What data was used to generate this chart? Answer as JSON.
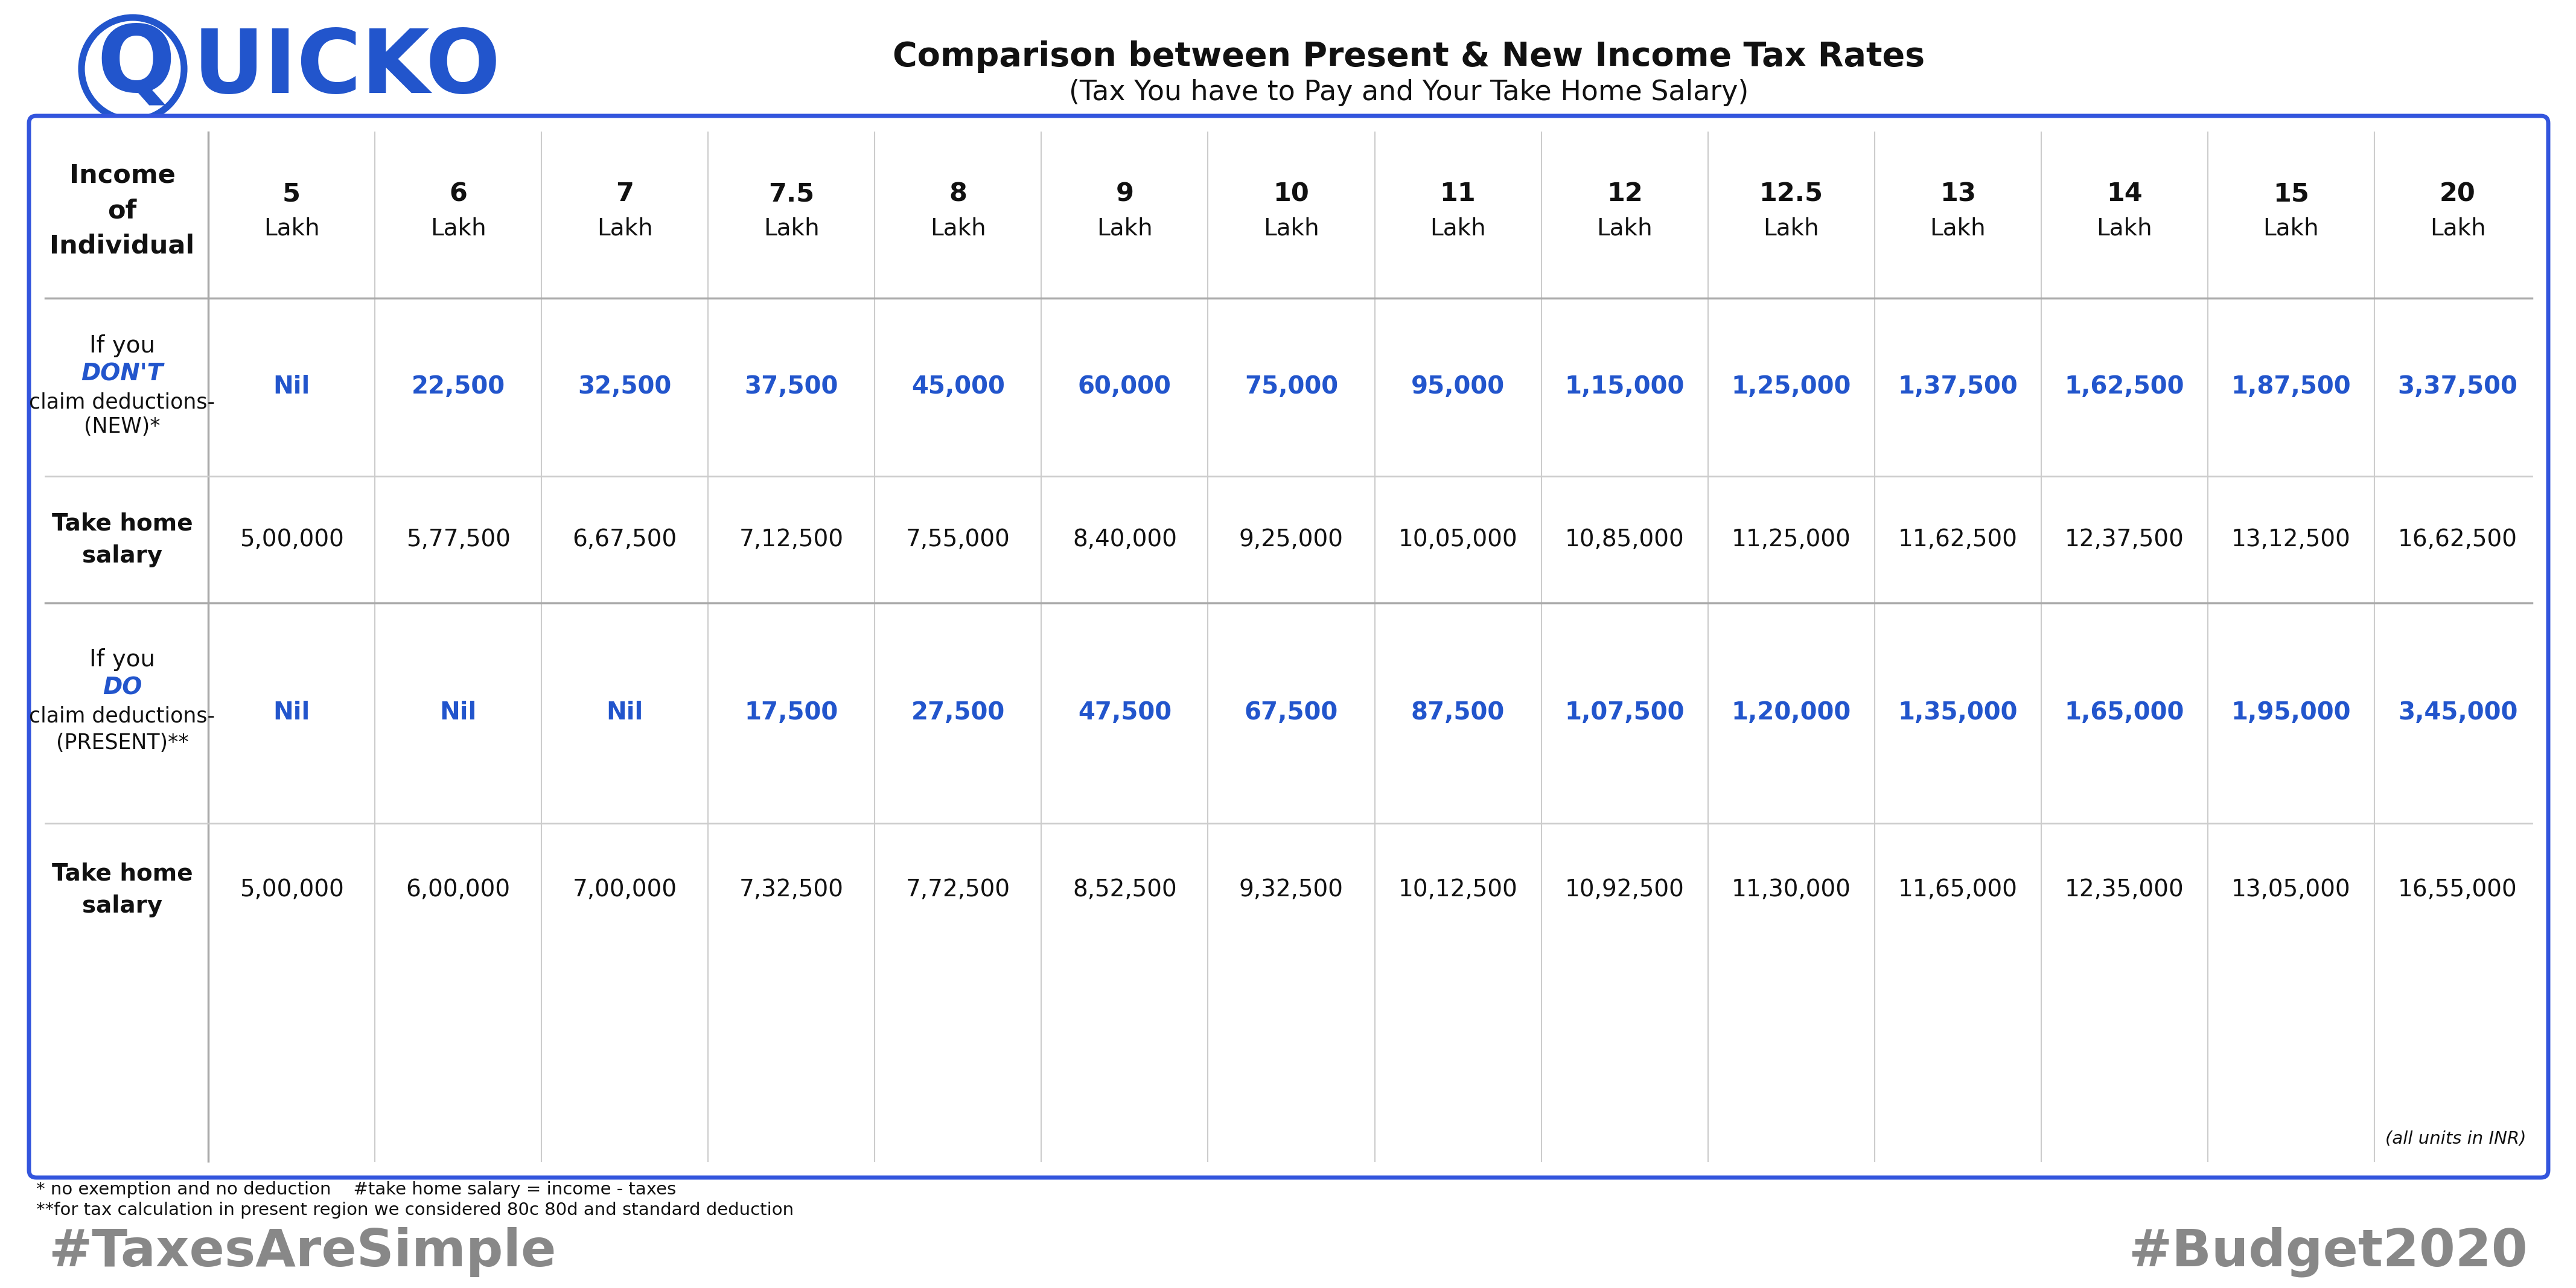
{
  "title_line1": "Comparison between Present & New Income Tax Rates",
  "title_line2": "(Tax You have to Pay and Your Take Home Salary)",
  "background_color": "#ffffff",
  "table_border_color": "#3355dd",
  "header_cols": [
    "5\nLakh",
    "6\nLakh",
    "7\nLakh",
    "7.5\nLakh",
    "8\nLakh",
    "9\nLakh",
    "10\nLakh",
    "11\nLakh",
    "12\nLakh",
    "12.5\nLakh",
    "13\nLakh",
    "14\nLakh",
    "15\nLakh",
    "20\nLakh"
  ],
  "row1_values": [
    "Nil",
    "22,500",
    "32,500",
    "37,500",
    "45,000",
    "60,000",
    "75,000",
    "95,000",
    "1,15,000",
    "1,25,000",
    "1,37,500",
    "1,62,500",
    "1,87,500",
    "3,37,500"
  ],
  "row2_values": [
    "5,00,000",
    "5,77,500",
    "6,67,500",
    "7,12,500",
    "7,55,000",
    "8,40,000",
    "9,25,000",
    "10,05,000",
    "10,85,000",
    "11,25,000",
    "11,62,500",
    "12,37,500",
    "13,12,500",
    "16,62,500"
  ],
  "row3_values": [
    "Nil",
    "Nil",
    "Nil",
    "17,500",
    "27,500",
    "47,500",
    "67,500",
    "87,500",
    "1,07,500",
    "1,20,000",
    "1,35,000",
    "1,65,000",
    "1,95,000",
    "3,45,000"
  ],
  "row4_values": [
    "5,00,000",
    "6,00,000",
    "7,00,000",
    "7,32,500",
    "7,72,500",
    "8,52,500",
    "9,32,500",
    "10,12,500",
    "10,92,500",
    "11,30,000",
    "11,65,000",
    "12,35,000",
    "13,05,000",
    "16,55,000"
  ],
  "footer_note1": "* no exemption and no deduction    #take home salary = income - taxes",
  "footer_note2": "**for tax calculation in present region we considered 80c 80d and standard deduction",
  "footer_units": "(all units in INR)",
  "hashtag_left": "#TaxesAreSimple",
  "hashtag_right": "#Budget2020",
  "hashtag_color": "#888888",
  "blue_color": "#2255cc",
  "dark_text": "#111111",
  "divider_color": "#aaaaaa",
  "col_header_label": "Income\nof\nIndividual",
  "title_fontsize": 40,
  "subtitle_fontsize": 33,
  "header_fontsize": 31,
  "data_fontsize": 28,
  "label_fontsize": 28,
  "hashtag_fontsize": 62,
  "footer_fontsize": 21
}
